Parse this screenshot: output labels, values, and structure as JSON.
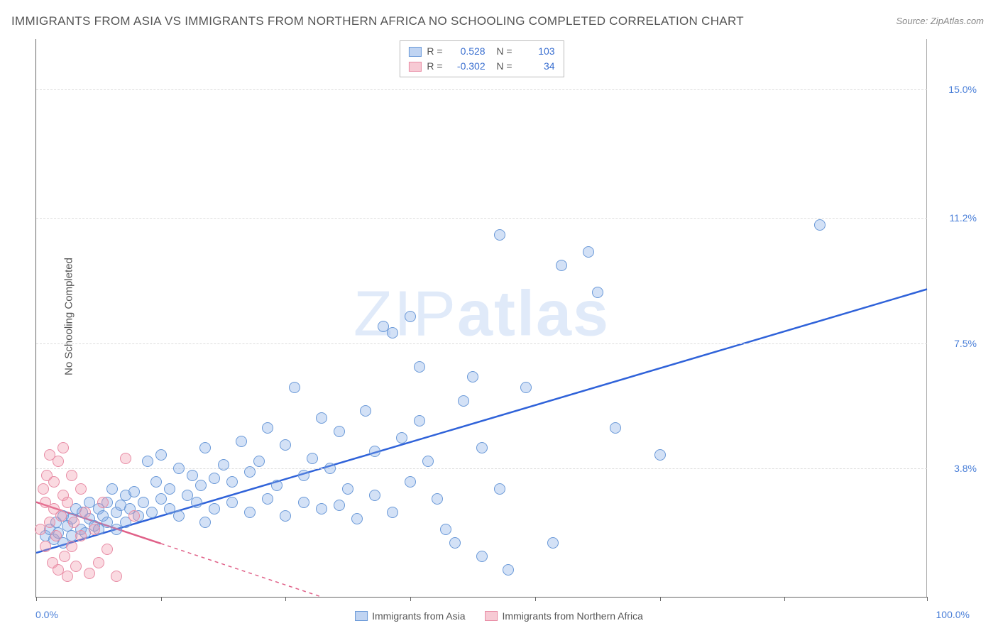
{
  "title": "IMMIGRANTS FROM ASIA VS IMMIGRANTS FROM NORTHERN AFRICA NO SCHOOLING COMPLETED CORRELATION CHART",
  "source": "Source: ZipAtlas.com",
  "y_axis_label": "No Schooling Completed",
  "watermark_light": "ZIP",
  "watermark_bold": "atlas",
  "chart": {
    "type": "scatter",
    "xlim": [
      0,
      100
    ],
    "ylim": [
      0,
      16.5
    ],
    "y_ticks": [
      {
        "v": 3.8,
        "label": "3.8%"
      },
      {
        "v": 7.5,
        "label": "7.5%"
      },
      {
        "v": 11.2,
        "label": "11.2%"
      },
      {
        "v": 15.0,
        "label": "15.0%"
      }
    ],
    "x_ticks": [
      0,
      14,
      28,
      42,
      56,
      70,
      84,
      100
    ],
    "x_left_label": "0.0%",
    "x_right_label": "100.0%",
    "grid_color": "#dddddd",
    "background_color": "#ffffff",
    "series": [
      {
        "name": "Immigrants from Asia",
        "color": "#6a99d8",
        "fill": "rgba(130,170,230,0.35)",
        "class": "blue",
        "R": "0.528",
        "N": "103",
        "trend": {
          "x1": 0,
          "y1": 1.3,
          "x2": 100,
          "y2": 9.1,
          "solid_to_x": 100,
          "color": "#2f62d9"
        },
        "points": [
          [
            1,
            1.8
          ],
          [
            1.5,
            2.0
          ],
          [
            2,
            1.7
          ],
          [
            2.2,
            2.2
          ],
          [
            2.5,
            1.9
          ],
          [
            3,
            2.4
          ],
          [
            3,
            1.6
          ],
          [
            3.5,
            2.1
          ],
          [
            4,
            2.3
          ],
          [
            4,
            1.8
          ],
          [
            4.5,
            2.6
          ],
          [
            5,
            2.0
          ],
          [
            5.2,
            2.5
          ],
          [
            5.5,
            1.9
          ],
          [
            6,
            2.3
          ],
          [
            6,
            2.8
          ],
          [
            6.5,
            2.1
          ],
          [
            7,
            2.6
          ],
          [
            7,
            2.0
          ],
          [
            7.5,
            2.4
          ],
          [
            8,
            2.8
          ],
          [
            8,
            2.2
          ],
          [
            8.5,
            3.2
          ],
          [
            9,
            2.5
          ],
          [
            9,
            2.0
          ],
          [
            9.5,
            2.7
          ],
          [
            10,
            3.0
          ],
          [
            10,
            2.2
          ],
          [
            10.5,
            2.6
          ],
          [
            11,
            3.1
          ],
          [
            11.5,
            2.4
          ],
          [
            12,
            2.8
          ],
          [
            12.5,
            4.0
          ],
          [
            13,
            2.5
          ],
          [
            13.5,
            3.4
          ],
          [
            14,
            2.9
          ],
          [
            14,
            4.2
          ],
          [
            15,
            2.6
          ],
          [
            15,
            3.2
          ],
          [
            16,
            3.8
          ],
          [
            16,
            2.4
          ],
          [
            17,
            3.0
          ],
          [
            17.5,
            3.6
          ],
          [
            18,
            2.8
          ],
          [
            18.5,
            3.3
          ],
          [
            19,
            2.2
          ],
          [
            19,
            4.4
          ],
          [
            20,
            3.5
          ],
          [
            20,
            2.6
          ],
          [
            21,
            3.9
          ],
          [
            22,
            2.8
          ],
          [
            22,
            3.4
          ],
          [
            23,
            4.6
          ],
          [
            24,
            2.5
          ],
          [
            24,
            3.7
          ],
          [
            25,
            4.0
          ],
          [
            26,
            2.9
          ],
          [
            26,
            5.0
          ],
          [
            27,
            3.3
          ],
          [
            28,
            4.5
          ],
          [
            28,
            2.4
          ],
          [
            29,
            6.2
          ],
          [
            30,
            3.6
          ],
          [
            30,
            2.8
          ],
          [
            31,
            4.1
          ],
          [
            32,
            5.3
          ],
          [
            32,
            2.6
          ],
          [
            33,
            3.8
          ],
          [
            34,
            4.9
          ],
          [
            34,
            2.7
          ],
          [
            35,
            3.2
          ],
          [
            36,
            2.3
          ],
          [
            37,
            5.5
          ],
          [
            38,
            4.3
          ],
          [
            38,
            3.0
          ],
          [
            39,
            8.0
          ],
          [
            40,
            7.8
          ],
          [
            40,
            2.5
          ],
          [
            41,
            4.7
          ],
          [
            42,
            8.3
          ],
          [
            42,
            3.4
          ],
          [
            43,
            5.2
          ],
          [
            43,
            6.8
          ],
          [
            44,
            4.0
          ],
          [
            45,
            2.9
          ],
          [
            46,
            2.0
          ],
          [
            47,
            1.6
          ],
          [
            48,
            5.8
          ],
          [
            49,
            6.5
          ],
          [
            50,
            1.2
          ],
          [
            50,
            4.4
          ],
          [
            52,
            3.2
          ],
          [
            52,
            10.7
          ],
          [
            53,
            0.8
          ],
          [
            55,
            6.2
          ],
          [
            58,
            1.6
          ],
          [
            59,
            9.8
          ],
          [
            62,
            10.2
          ],
          [
            63,
            9.0
          ],
          [
            65,
            5.0
          ],
          [
            70,
            4.2
          ],
          [
            88,
            11.0
          ]
        ]
      },
      {
        "name": "Immigrants from Northern Africa",
        "color": "#e88ca5",
        "fill": "rgba(240,150,170,0.35)",
        "class": "pink",
        "R": "-0.302",
        "N": "34",
        "trend": {
          "x1": 0,
          "y1": 2.8,
          "x2": 32,
          "y2": 0.0,
          "solid_to_x": 14,
          "color": "#e06088"
        },
        "points": [
          [
            0.5,
            2.0
          ],
          [
            0.8,
            3.2
          ],
          [
            1,
            1.5
          ],
          [
            1,
            2.8
          ],
          [
            1.2,
            3.6
          ],
          [
            1.5,
            2.2
          ],
          [
            1.5,
            4.2
          ],
          [
            1.8,
            1.0
          ],
          [
            2,
            2.6
          ],
          [
            2,
            3.4
          ],
          [
            2.2,
            1.8
          ],
          [
            2.5,
            4.0
          ],
          [
            2.5,
            0.8
          ],
          [
            2.8,
            2.4
          ],
          [
            3,
            3.0
          ],
          [
            3,
            4.4
          ],
          [
            3.2,
            1.2
          ],
          [
            3.5,
            2.8
          ],
          [
            3.5,
            0.6
          ],
          [
            4,
            3.6
          ],
          [
            4,
            1.5
          ],
          [
            4.2,
            2.2
          ],
          [
            4.5,
            0.9
          ],
          [
            5,
            3.2
          ],
          [
            5,
            1.8
          ],
          [
            5.5,
            2.5
          ],
          [
            6,
            0.7
          ],
          [
            6.5,
            2.0
          ],
          [
            7,
            1.0
          ],
          [
            7.5,
            2.8
          ],
          [
            8,
            1.4
          ],
          [
            9,
            0.6
          ],
          [
            10,
            4.1
          ],
          [
            11,
            2.4
          ]
        ]
      }
    ]
  },
  "legend": {
    "items": [
      "Immigrants from Asia",
      "Immigrants from Northern Africa"
    ]
  }
}
